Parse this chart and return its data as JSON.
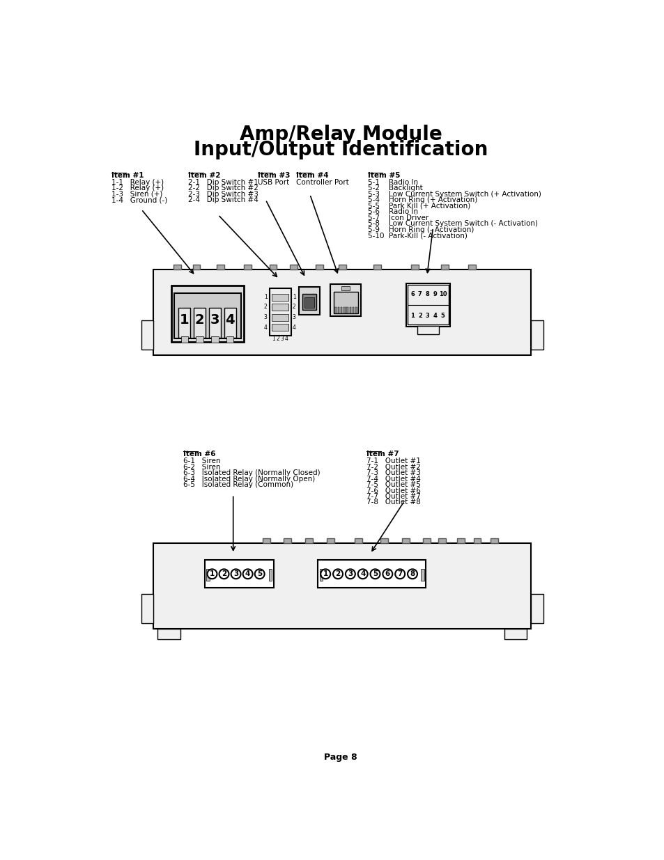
{
  "title_line1": "Amp/Relay Module",
  "title_line2": "Input/Output Identification",
  "title_fontsize": 20,
  "background_color": "#ffffff",
  "item1_header": "Item #1",
  "item1_lines": [
    "1-1   Relay (+)",
    "1-2   Relay (+)",
    "1-3   Siren (+)",
    "1-4   Ground (-)"
  ],
  "item2_header": "Item #2",
  "item2_lines": [
    "2-1   Dip Switch #1",
    "2-2   Dip Switch #2",
    "2-3   Dip Switch #3",
    "2-4   Dip Switch #4"
  ],
  "item3_header": "Item #3",
  "item3_lines": [
    "USB Port"
  ],
  "item4_header": "Item #4",
  "item4_lines": [
    "Controller Port"
  ],
  "item5_header": "Item #5",
  "item5_lines": [
    "5-1    Radio In",
    "5-2    Backlight",
    "5-3    Low Current System Switch (+ Activation)",
    "5-4    Horn Ring (+ Activation)",
    "5-5    Park Kill (+ Activation)",
    "5-6    Radio In",
    "5-7    Icon Driver",
    "5-8    Low Current System Switch (- Activation)",
    "5-9    Horn Ring (- Activation)",
    "5-10  Park-Kill (- Activation)"
  ],
  "item6_header": "Item #6",
  "item6_lines": [
    "6-1   Siren",
    "6-2   Siren",
    "6-3   Isolated Relay (Normally Closed)",
    "6-4   Isolated Relay (Normally Open)",
    "6-5   Isolated Relay (Common)"
  ],
  "item7_header": "Item #7",
  "item7_lines": [
    "7-1   Outlet #1",
    "7-2   Outlet #2",
    "7-3   Outlet #3",
    "7-4   Outlet #4",
    "7-5   Outlet #5",
    "7-6   Outlet #6",
    "7-7   Outlet #7",
    "7-8   Outlet #8"
  ],
  "page_label": "Page 8"
}
